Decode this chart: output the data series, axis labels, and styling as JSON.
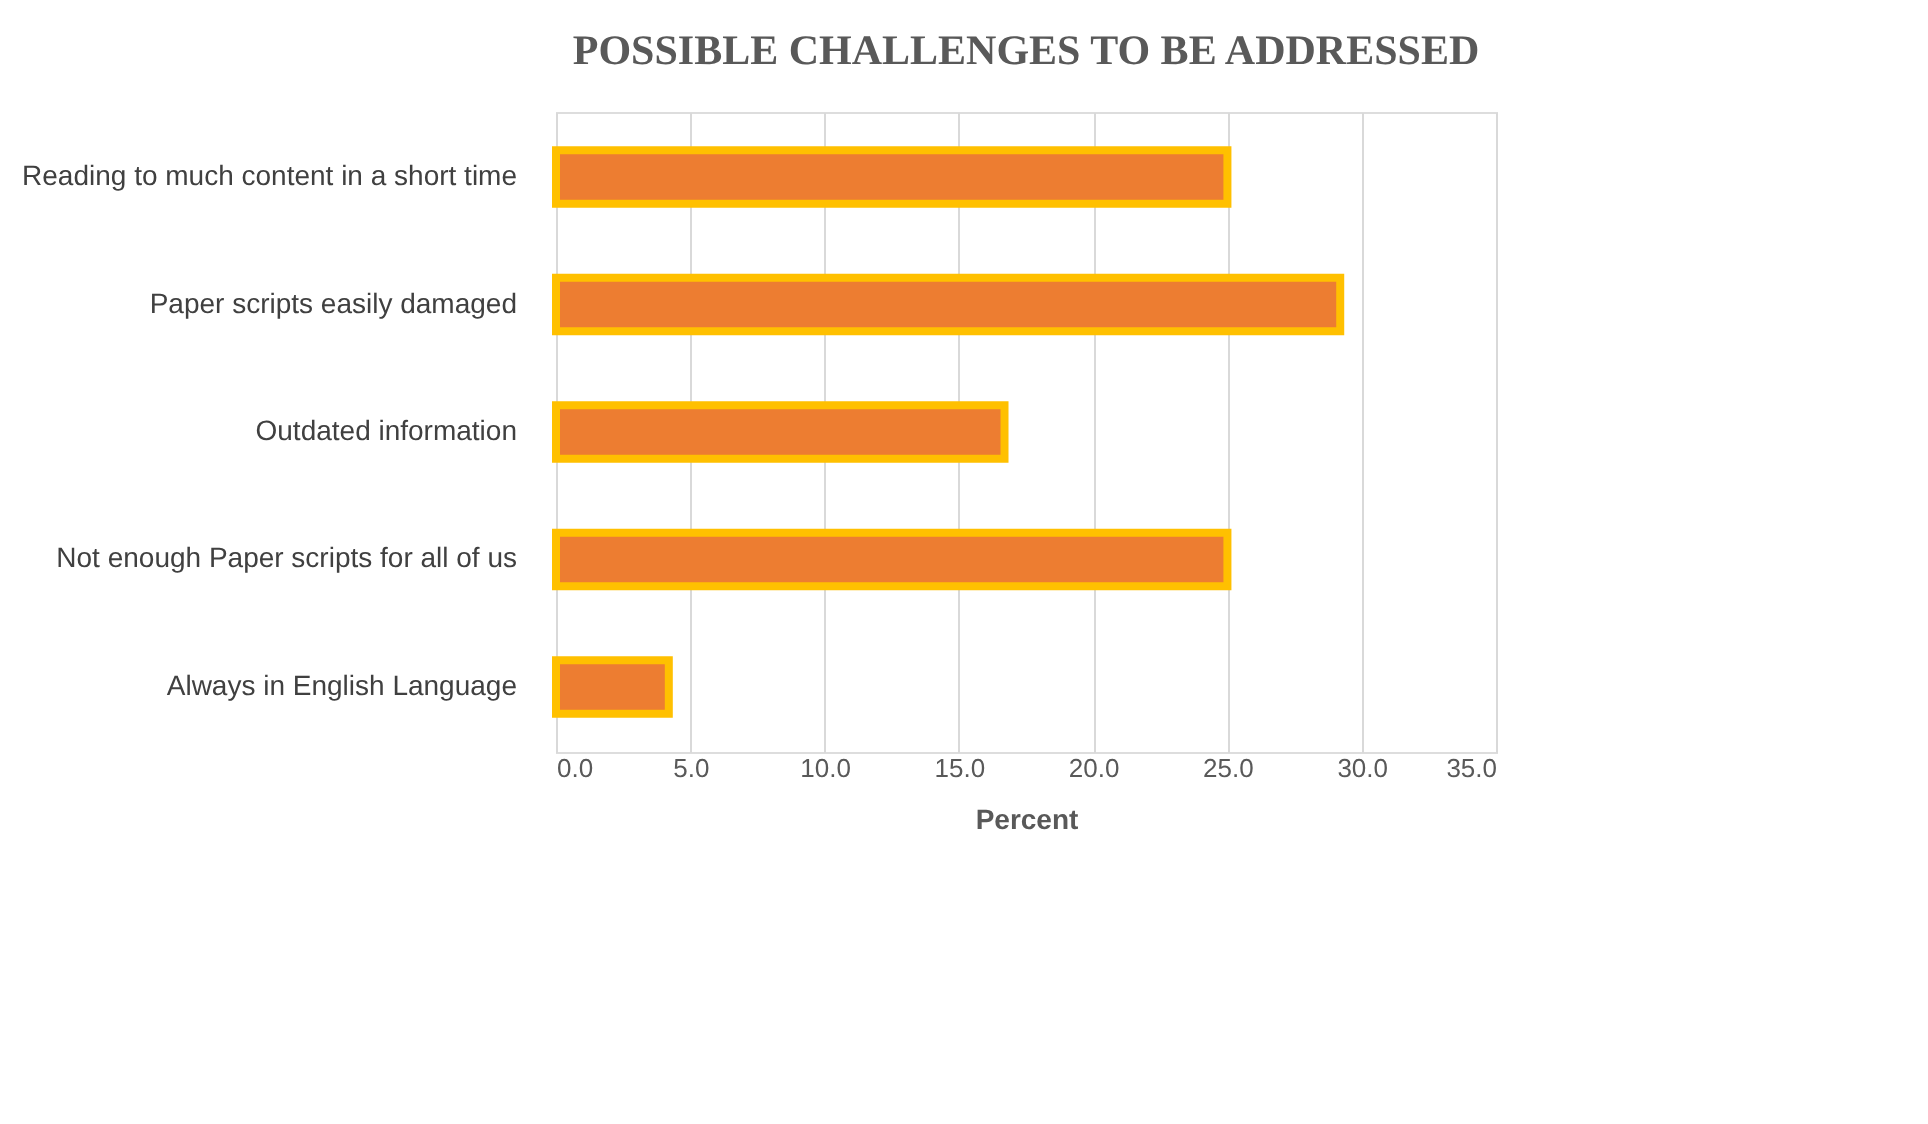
{
  "chart_data": {
    "type": "bar",
    "orientation": "horizontal",
    "title": "POSSIBLE CHALLENGES TO BE ADDRESSED",
    "xlabel": "Percent",
    "categories": [
      "Reading to much content in a short time",
      "Paper scripts easily damaged",
      "Outdated information",
      "Not enough Paper scripts for all of us",
      "Always in English Language"
    ],
    "values": [
      25.0,
      29.2,
      16.7,
      25.0,
      4.2
    ],
    "color": "#ed7d31",
    "xlim": [
      0,
      35
    ],
    "xticks": [
      {
        "value": 0,
        "label": "0.0"
      },
      {
        "value": 5,
        "label": "5.0"
      },
      {
        "value": 10,
        "label": "10.0"
      },
      {
        "value": 15,
        "label": "15.0"
      },
      {
        "value": 20,
        "label": "20.0"
      },
      {
        "value": 25,
        "label": "25.0"
      },
      {
        "value": 30,
        "label": "30.0"
      },
      {
        "value": 35,
        "label": "35.0"
      }
    ],
    "grid": "x"
  }
}
